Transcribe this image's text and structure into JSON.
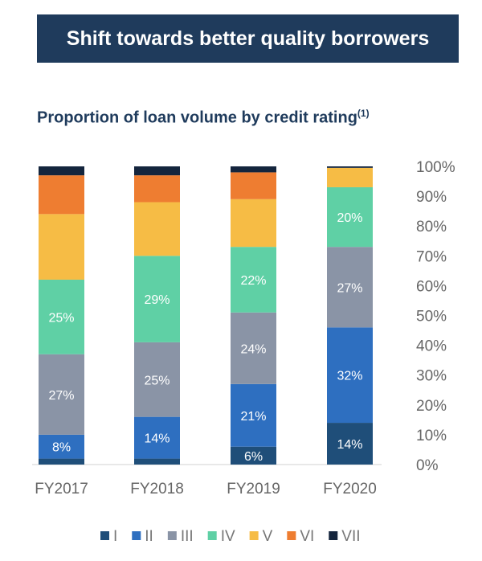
{
  "banner": {
    "title": "Shift towards better quality borrowers"
  },
  "chart_data": {
    "type": "bar",
    "stacked": true,
    "title": "Proportion of loan volume by credit rating",
    "title_footnote": "(1)",
    "categories": [
      "FY2017",
      "FY2018",
      "FY2019",
      "FY2020"
    ],
    "ylim": [
      0,
      100
    ],
    "yticks": [
      "0%",
      "10%",
      "20%",
      "30%",
      "40%",
      "50%",
      "60%",
      "70%",
      "80%",
      "90%",
      "100%"
    ],
    "legend_position": "bottom",
    "series": [
      {
        "name": "I",
        "color": "#1f4e79",
        "values": [
          2,
          2,
          6,
          14
        ],
        "labels": [
          null,
          null,
          "6%",
          "14%"
        ]
      },
      {
        "name": "II",
        "color": "#2e6fc0",
        "values": [
          8,
          14,
          21,
          32
        ],
        "labels": [
          "8%",
          "14%",
          "21%",
          "32%"
        ]
      },
      {
        "name": "III",
        "color": "#8a94a6",
        "values": [
          27,
          25,
          24,
          27
        ],
        "labels": [
          "27%",
          "25%",
          "24%",
          "27%"
        ]
      },
      {
        "name": "IV",
        "color": "#5fd0a5",
        "values": [
          25,
          29,
          22,
          20
        ],
        "labels": [
          "25%",
          "29%",
          "22%",
          "20%"
        ]
      },
      {
        "name": "V",
        "color": "#f6bc45",
        "values": [
          22,
          18,
          16,
          6.5
        ],
        "labels": [
          null,
          null,
          null,
          null
        ]
      },
      {
        "name": "VI",
        "color": "#ee7d31",
        "values": [
          13,
          9,
          9,
          0
        ],
        "labels": [
          null,
          null,
          null,
          null
        ]
      },
      {
        "name": "VII",
        "color": "#14253d",
        "values": [
          3,
          3,
          2,
          0.5
        ],
        "labels": [
          null,
          null,
          null,
          null
        ]
      }
    ]
  }
}
